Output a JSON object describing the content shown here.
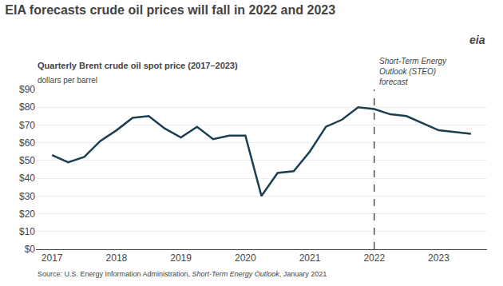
{
  "chart_data": {
    "type": "line",
    "title": "EIA forecasts crude oil prices will fall in 2022 and 2023",
    "subtitle": "Quarterly Brent crude oil spot price (2017–2023)",
    "ylabel": "dollars per barrel",
    "annotations": [
      "Short-Term Energy\nOutlook (STEO)\nforecast",
      "eia"
    ],
    "source": [
      "Source: U.S. Energy Information Administration, ",
      "Short-Term Energy Outlook",
      ", January 2021"
    ],
    "x": [
      2017.0,
      2017.25,
      2017.5,
      2017.75,
      2018.0,
      2018.25,
      2018.5,
      2018.75,
      2019.0,
      2019.25,
      2019.5,
      2019.75,
      2020.0,
      2020.25,
      2020.5,
      2020.75,
      2021.0,
      2021.25,
      2021.5,
      2021.75,
      2022.0,
      2022.25,
      2022.5,
      2022.75,
      2023.0,
      2023.25,
      2023.5
    ],
    "values": [
      53,
      49,
      52,
      61,
      67,
      74,
      75,
      68,
      63,
      69,
      62,
      64,
      64,
      30,
      43,
      44,
      55,
      69,
      73,
      80,
      79,
      76,
      75,
      71,
      67,
      66,
      65
    ],
    "color": "#1b3f52",
    "vline_x": 2022.0,
    "xlim": [
      2016.75,
      2023.75
    ],
    "xticks": [
      2017,
      2018,
      2019,
      2020,
      2021,
      2022,
      2023
    ],
    "ylim": [
      0,
      90
    ],
    "yticks": [
      {
        "value": 0,
        "label": "$0"
      },
      {
        "value": 10,
        "label": "$10"
      },
      {
        "value": 20,
        "label": "$20"
      },
      {
        "value": 30,
        "label": "$30"
      },
      {
        "value": 40,
        "label": "$40"
      },
      {
        "value": 50,
        "label": "$50"
      },
      {
        "value": 60,
        "label": "$60"
      },
      {
        "value": 70,
        "label": "$70"
      },
      {
        "value": 80,
        "label": "$80"
      },
      {
        "value": 90,
        "label": "$90"
      }
    ],
    "grid": "y"
  }
}
